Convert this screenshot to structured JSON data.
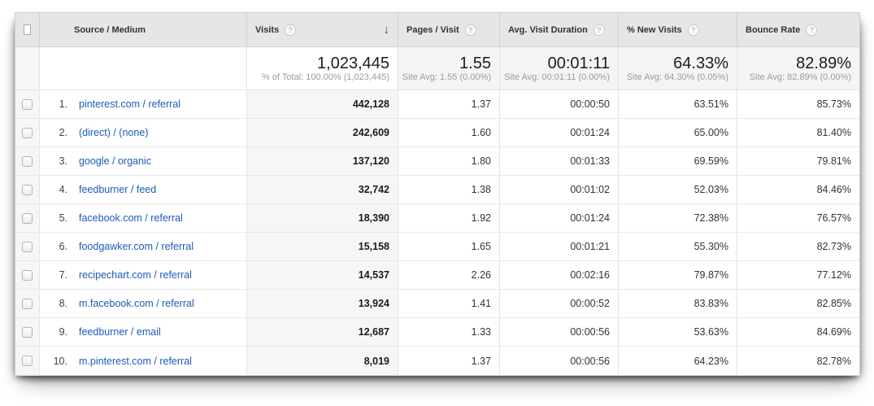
{
  "icons": {
    "help": "?",
    "sort_desc": "↓",
    "checkbox": "checkbox-unchecked"
  },
  "colors": {
    "link": "#1c5bb7",
    "header_bg": "#e6e6e6",
    "sorted_col_bg": "#f6f6f6"
  },
  "columns": {
    "source_medium": {
      "label": "Source / Medium"
    },
    "visits": {
      "label": "Visits",
      "sorted": "desc"
    },
    "pages_visit": {
      "label": "Pages / Visit"
    },
    "duration": {
      "label": "Avg. Visit Duration"
    },
    "new_visits": {
      "label": "% New Visits"
    },
    "bounce": {
      "label": "Bounce Rate"
    }
  },
  "summary": {
    "visits": {
      "value": "1,023,445",
      "sub": "% of Total: 100.00% (1,023,445)"
    },
    "pages_visit": {
      "value": "1.55",
      "sub": "Site Avg: 1.55 (0.00%)"
    },
    "duration": {
      "value": "00:01:11",
      "sub": "Site Avg: 00:01:11 (0.00%)"
    },
    "new_visits": {
      "value": "64.33%",
      "sub": "Site Avg: 64.30% (0.05%)"
    },
    "bounce": {
      "value": "82.89%",
      "sub": "Site Avg: 82.89% (0.00%)"
    }
  },
  "rows": [
    {
      "num": "1.",
      "source": "pinterest.com / referral",
      "visits": "442,128",
      "pages": "1.37",
      "duration": "00:00:50",
      "new_visits": "63.51%",
      "bounce": "85.73%"
    },
    {
      "num": "2.",
      "source": "(direct) / (none)",
      "visits": "242,609",
      "pages": "1.60",
      "duration": "00:01:24",
      "new_visits": "65.00%",
      "bounce": "81.40%"
    },
    {
      "num": "3.",
      "source": "google / organic",
      "visits": "137,120",
      "pages": "1.80",
      "duration": "00:01:33",
      "new_visits": "69.59%",
      "bounce": "79.81%"
    },
    {
      "num": "4.",
      "source": "feedburner / feed",
      "visits": "32,742",
      "pages": "1.38",
      "duration": "00:01:02",
      "new_visits": "52.03%",
      "bounce": "84.46%"
    },
    {
      "num": "5.",
      "source": "facebook.com / referral",
      "visits": "18,390",
      "pages": "1.92",
      "duration": "00:01:24",
      "new_visits": "72.38%",
      "bounce": "76.57%"
    },
    {
      "num": "6.",
      "source": "foodgawker.com / referral",
      "visits": "15,158",
      "pages": "1.65",
      "duration": "00:01:21",
      "new_visits": "55.30%",
      "bounce": "82.73%"
    },
    {
      "num": "7.",
      "source": "recipechart.com / referral",
      "visits": "14,537",
      "pages": "2.26",
      "duration": "00:02:16",
      "new_visits": "79.87%",
      "bounce": "77.12%"
    },
    {
      "num": "8.",
      "source": "m.facebook.com / referral",
      "visits": "13,924",
      "pages": "1.41",
      "duration": "00:00:52",
      "new_visits": "83.83%",
      "bounce": "82.85%"
    },
    {
      "num": "9.",
      "source": "feedburner / email",
      "visits": "12,687",
      "pages": "1.33",
      "duration": "00:00:56",
      "new_visits": "53.63%",
      "bounce": "84.69%"
    },
    {
      "num": "10.",
      "source": "m.pinterest.com / referral",
      "visits": "8,019",
      "pages": "1.37",
      "duration": "00:00:56",
      "new_visits": "64.23%",
      "bounce": "82.78%"
    }
  ]
}
